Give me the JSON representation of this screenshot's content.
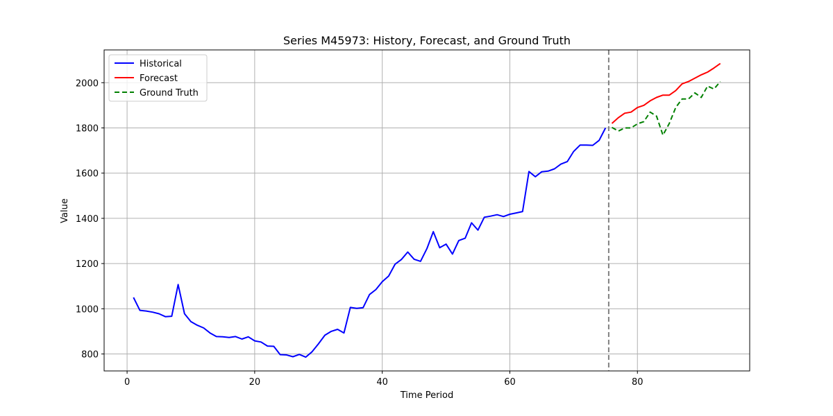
{
  "chart_data": {
    "type": "line",
    "title": "Series M45973: History, Forecast, and Ground Truth",
    "xlabel": "Time Period",
    "ylabel": "Value",
    "xlim": [
      -3.6,
      97.6
    ],
    "ylim": [
      725,
      2145
    ],
    "x_ticks": [
      0,
      20,
      40,
      60,
      80
    ],
    "y_ticks": [
      800,
      1000,
      1200,
      1400,
      1600,
      1800,
      2000
    ],
    "grid": true,
    "legend_position": "top-left",
    "forecast_start_marker": 75.5,
    "series": [
      {
        "name": "Historical",
        "color": "#0000ff",
        "style": "solid",
        "x": [
          1,
          2,
          3,
          4,
          5,
          6,
          7,
          8,
          9,
          10,
          11,
          12,
          13,
          14,
          15,
          16,
          17,
          18,
          19,
          20,
          21,
          22,
          23,
          24,
          25,
          26,
          27,
          28,
          29,
          30,
          31,
          32,
          33,
          34,
          35,
          36,
          37,
          38,
          39,
          40,
          41,
          42,
          43,
          44,
          45,
          46,
          47,
          48,
          49,
          50,
          51,
          52,
          53,
          54,
          55,
          56,
          57,
          58,
          59,
          60,
          61,
          62,
          63,
          64,
          65,
          66,
          67,
          68,
          69,
          70,
          71,
          72,
          73,
          74,
          75
        ],
        "values": [
          1050,
          993,
          990,
          985,
          978,
          965,
          967,
          1107,
          978,
          943,
          927,
          915,
          893,
          877,
          876,
          873,
          877,
          866,
          876,
          858,
          853,
          835,
          834,
          797,
          796,
          788,
          798,
          786,
          810,
          845,
          883,
          900,
          909,
          893,
          1006,
          1002,
          1005,
          1063,
          1085,
          1120,
          1145,
          1197,
          1218,
          1251,
          1219,
          1210,
          1266,
          1341,
          1270,
          1286,
          1242,
          1302,
          1312,
          1380,
          1348,
          1405,
          1410,
          1416,
          1408,
          1418,
          1424,
          1430,
          1607,
          1584,
          1606,
          1609,
          1619,
          1640,
          1651,
          1696,
          1724,
          1724,
          1723,
          1745,
          1800
        ]
      },
      {
        "name": "Forecast",
        "color": "#ff0000",
        "style": "solid",
        "x": [
          76,
          77,
          78,
          79,
          80,
          81,
          82,
          83,
          84,
          85,
          86,
          87,
          88,
          89,
          90,
          91,
          92,
          93
        ],
        "values": [
          1820,
          1845,
          1865,
          1870,
          1890,
          1900,
          1920,
          1935,
          1945,
          1945,
          1965,
          1995,
          2005,
          2020,
          2035,
          2047,
          2065,
          2085
        ]
      },
      {
        "name": "Ground Truth",
        "color": "#008000",
        "style": "dashed",
        "x": [
          76,
          77,
          78,
          79,
          80,
          81,
          82,
          83,
          84,
          85,
          86,
          87,
          88,
          89,
          90,
          91,
          92,
          93
        ],
        "values": [
          1802,
          1786,
          1800,
          1800,
          1818,
          1828,
          1870,
          1852,
          1768,
          1820,
          1890,
          1928,
          1928,
          1955,
          1935,
          1985,
          1972,
          2005
        ]
      }
    ]
  }
}
